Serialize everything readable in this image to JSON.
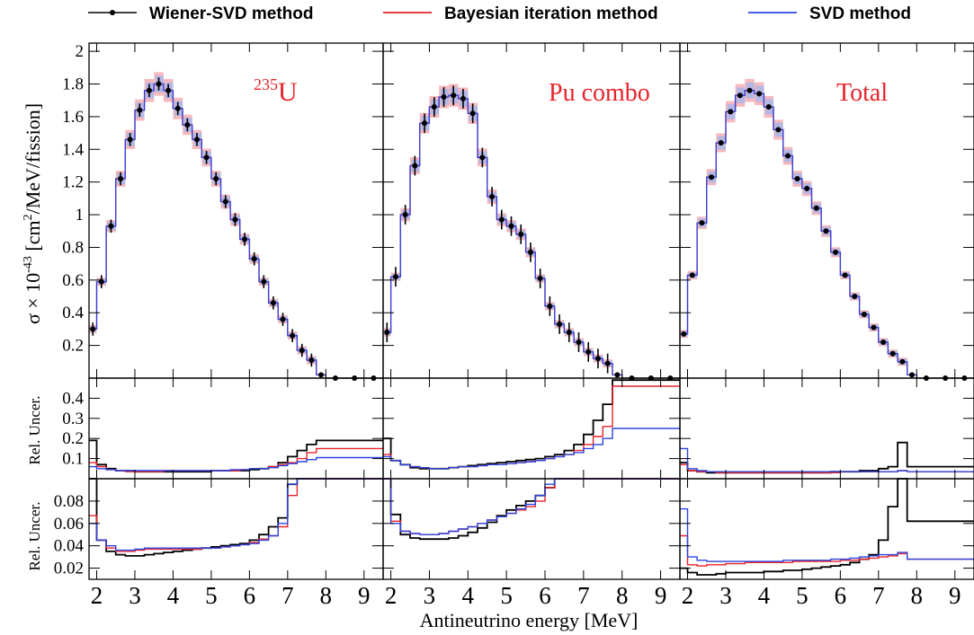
{
  "legend": {
    "wiener": {
      "label": "Wiener-SVD method",
      "color": "#000000"
    },
    "bayes": {
      "label": "Bayesian iteration method",
      "color": "#e8232a"
    },
    "svd": {
      "label": "SVD method",
      "color": "#2b45e0"
    }
  },
  "xlabel": "Antineutrino energy [MeV]",
  "ylabel_top": "σ × 10",
  "ylabel_top_exp": "-43",
  "ylabel_top_unit": " [cm",
  "ylabel_top_unit_exp": "2",
  "ylabel_top_unit_rest": "/MeV/fission]",
  "ylabel_mid": "Rel. Uncer.",
  "ylabel_bot": "Rel. Uncer.",
  "panels": [
    {
      "label_sup": "235",
      "label": "U"
    },
    {
      "label": "Pu combo"
    },
    {
      "label": "Total"
    }
  ],
  "colors": {
    "wiener": "#000000",
    "bayes": "#e8232a",
    "svd": "#2b45e0",
    "band_red": "#f4a8ac",
    "band_blue": "#a9b6ec",
    "label": "#e8232a"
  },
  "chart_data": {
    "type": "line",
    "x_edges": [
      1.8,
      2.0,
      2.25,
      2.5,
      2.75,
      3.0,
      3.25,
      3.5,
      3.75,
      4.0,
      4.25,
      4.5,
      4.75,
      5.0,
      5.25,
      5.5,
      5.75,
      6.0,
      6.25,
      6.5,
      6.75,
      7.0,
      7.25,
      7.5,
      7.75,
      8.0,
      8.5,
      9.0,
      9.5
    ],
    "xlim": [
      1.8,
      9.5
    ],
    "xticks": [
      "2",
      "3",
      "4",
      "5",
      "6",
      "7",
      "8",
      "9"
    ],
    "top": {
      "ylim": [
        0,
        2.05
      ],
      "yticks": [
        "0.2",
        "0.4",
        "0.6",
        "0.8",
        "1",
        "1.2",
        "1.4",
        "1.6",
        "1.8",
        "2"
      ],
      "series": [
        {
          "values": [
            0.3,
            0.59,
            0.93,
            1.22,
            1.46,
            1.64,
            1.76,
            1.8,
            1.76,
            1.65,
            1.55,
            1.46,
            1.35,
            1.22,
            1.08,
            0.97,
            0.85,
            0.73,
            0.59,
            0.46,
            0.36,
            0.26,
            0.17,
            0.11,
            0.02,
            0.0,
            0.0,
            0.0
          ]
        },
        {
          "values": [
            0.28,
            0.62,
            1.0,
            1.3,
            1.56,
            1.66,
            1.72,
            1.73,
            1.71,
            1.62,
            1.35,
            1.11,
            0.97,
            0.93,
            0.88,
            0.77,
            0.61,
            0.44,
            0.33,
            0.28,
            0.22,
            0.16,
            0.12,
            0.09,
            0.02,
            0.0,
            0.0,
            0.0
          ]
        },
        {
          "values": [
            0.27,
            0.63,
            0.95,
            1.23,
            1.44,
            1.63,
            1.73,
            1.76,
            1.74,
            1.66,
            1.52,
            1.36,
            1.22,
            1.16,
            1.04,
            0.9,
            0.77,
            0.63,
            0.5,
            0.39,
            0.31,
            0.22,
            0.15,
            0.1,
            0.02,
            0.0,
            0.0,
            0.0
          ]
        }
      ]
    },
    "mid": {
      "ylim": [
        0,
        0.5
      ],
      "yticks": [
        "0.1",
        "0.2",
        "0.3",
        "0.4"
      ],
      "series": [
        [
          {
            "name": "Wiener-SVD method",
            "values": [
              0.19,
              0.07,
              0.05,
              0.04,
              0.04,
              0.035,
              0.035,
              0.035,
              0.035,
              0.035,
              0.035,
              0.035,
              0.035,
              0.04,
              0.04,
              0.04,
              0.04,
              0.045,
              0.05,
              0.06,
              0.08,
              0.11,
              0.14,
              0.17,
              0.19,
              0.19,
              0.19,
              0.19
            ]
          },
          {
            "name": "Bayesian iteration method",
            "values": [
              0.08,
              0.06,
              0.045,
              0.04,
              0.035,
              0.035,
              0.035,
              0.035,
              0.04,
              0.04,
              0.04,
              0.04,
              0.04,
              0.04,
              0.04,
              0.04,
              0.045,
              0.05,
              0.05,
              0.06,
              0.07,
              0.08,
              0.1,
              0.13,
              0.15,
              0.15,
              0.15,
              0.15
            ]
          },
          {
            "name": "SVD method",
            "values": [
              0.06,
              0.05,
              0.045,
              0.04,
              0.04,
              0.04,
              0.04,
              0.04,
              0.04,
              0.04,
              0.04,
              0.04,
              0.04,
              0.04,
              0.04,
              0.045,
              0.045,
              0.05,
              0.05,
              0.055,
              0.065,
              0.075,
              0.085,
              0.095,
              0.105,
              0.105,
              0.105,
              0.105
            ]
          }
        ],
        [
          {
            "name": "Wiener-SVD method",
            "values": [
              0.2,
              0.09,
              0.07,
              0.055,
              0.05,
              0.05,
              0.05,
              0.055,
              0.06,
              0.065,
              0.07,
              0.075,
              0.08,
              0.085,
              0.09,
              0.095,
              0.1,
              0.11,
              0.12,
              0.14,
              0.17,
              0.22,
              0.29,
              0.37,
              0.49,
              0.49,
              0.49,
              0.49
            ]
          },
          {
            "name": "Bayesian iteration method",
            "values": [
              0.12,
              0.09,
              0.07,
              0.06,
              0.055,
              0.05,
              0.05,
              0.055,
              0.06,
              0.06,
              0.065,
              0.07,
              0.07,
              0.075,
              0.08,
              0.085,
              0.09,
              0.1,
              0.11,
              0.12,
              0.14,
              0.17,
              0.21,
              0.26,
              0.46,
              0.46,
              0.46,
              0.46
            ]
          },
          {
            "name": "SVD method",
            "values": [
              0.11,
              0.09,
              0.07,
              0.06,
              0.055,
              0.05,
              0.05,
              0.055,
              0.06,
              0.06,
              0.065,
              0.07,
              0.07,
              0.075,
              0.08,
              0.085,
              0.09,
              0.1,
              0.11,
              0.12,
              0.13,
              0.15,
              0.17,
              0.2,
              0.25,
              0.25,
              0.25,
              0.25
            ]
          }
        ],
        [
          {
            "name": "Wiener-SVD method",
            "values": [
              0.08,
              0.04,
              0.035,
              0.03,
              0.03,
              0.03,
              0.03,
              0.03,
              0.03,
              0.03,
              0.03,
              0.03,
              0.03,
              0.03,
              0.03,
              0.03,
              0.035,
              0.035,
              0.035,
              0.04,
              0.04,
              0.05,
              0.06,
              0.18,
              0.06,
              0.06,
              0.06,
              0.06
            ]
          },
          {
            "name": "Bayesian iteration method",
            "values": [
              0.07,
              0.04,
              0.035,
              0.035,
              0.03,
              0.03,
              0.03,
              0.03,
              0.03,
              0.03,
              0.03,
              0.03,
              0.03,
              0.03,
              0.03,
              0.03,
              0.03,
              0.035,
              0.035,
              0.035,
              0.035,
              0.035,
              0.035,
              0.04,
              0.035,
              0.035,
              0.035,
              0.035
            ]
          },
          {
            "name": "SVD method",
            "values": [
              0.15,
              0.05,
              0.04,
              0.035,
              0.035,
              0.035,
              0.035,
              0.035,
              0.035,
              0.035,
              0.035,
              0.035,
              0.035,
              0.035,
              0.035,
              0.035,
              0.035,
              0.035,
              0.035,
              0.035,
              0.035,
              0.035,
              0.035,
              0.04,
              0.035,
              0.035,
              0.035,
              0.035
            ]
          }
        ]
      ]
    },
    "bot": {
      "ylim": [
        0.01,
        0.1
      ],
      "yticks": [
        "0.02",
        "0.04",
        "0.06",
        "0.08"
      ],
      "series": [
        [
          {
            "name": "Wiener-SVD method",
            "values": [
              0.1,
              0.045,
              0.035,
              0.032,
              0.031,
              0.031,
              0.032,
              0.033,
              0.034,
              0.035,
              0.036,
              0.037,
              0.038,
              0.039,
              0.04,
              0.041,
              0.042,
              0.045,
              0.05,
              0.057,
              0.065,
              0.095,
              0.1,
              0.1,
              0.1,
              0.1,
              0.1,
              0.1
            ]
          },
          {
            "name": "Bayesian iteration method",
            "values": [
              0.067,
              0.045,
              0.038,
              0.035,
              0.035,
              0.036,
              0.037,
              0.037,
              0.037,
              0.037,
              0.037,
              0.037,
              0.038,
              0.038,
              0.039,
              0.04,
              0.041,
              0.043,
              0.046,
              0.049,
              0.057,
              0.085,
              0.1,
              0.1,
              0.1,
              0.1,
              0.1,
              0.1
            ]
          },
          {
            "name": "SVD method",
            "values": [
              0.06,
              0.045,
              0.04,
              0.036,
              0.036,
              0.037,
              0.038,
              0.038,
              0.038,
              0.038,
              0.038,
              0.038,
              0.038,
              0.038,
              0.039,
              0.04,
              0.041,
              0.042,
              0.045,
              0.049,
              0.06,
              0.095,
              0.1,
              0.1,
              0.1,
              0.1,
              0.1,
              0.1
            ]
          }
        ],
        [
          {
            "name": "Wiener-SVD method",
            "values": [
              0.1,
              0.068,
              0.05,
              0.047,
              0.046,
              0.046,
              0.046,
              0.047,
              0.049,
              0.052,
              0.056,
              0.061,
              0.067,
              0.072,
              0.076,
              0.08,
              0.085,
              0.092,
              0.1,
              0.1,
              0.1,
              0.1,
              0.1,
              0.1,
              0.1,
              0.1,
              0.1,
              0.1
            ]
          },
          {
            "name": "Bayesian iteration method",
            "values": [
              0.1,
              0.062,
              0.053,
              0.051,
              0.05,
              0.05,
              0.051,
              0.053,
              0.055,
              0.057,
              0.06,
              0.063,
              0.066,
              0.069,
              0.072,
              0.075,
              0.08,
              0.092,
              0.1,
              0.1,
              0.1,
              0.1,
              0.1,
              0.1,
              0.1,
              0.1,
              0.1,
              0.1
            ]
          },
          {
            "name": "SVD method",
            "values": [
              0.1,
              0.06,
              0.053,
              0.051,
              0.05,
              0.05,
              0.051,
              0.053,
              0.055,
              0.057,
              0.06,
              0.063,
              0.066,
              0.069,
              0.073,
              0.077,
              0.085,
              0.095,
              0.1,
              0.1,
              0.1,
              0.1,
              0.1,
              0.1,
              0.1,
              0.1,
              0.1,
              0.1
            ]
          }
        ],
        [
          {
            "name": "Wiener-SVD method",
            "values": [
              0.02,
              0.016,
              0.014,
              0.014,
              0.015,
              0.016,
              0.016,
              0.016,
              0.016,
              0.017,
              0.017,
              0.018,
              0.018,
              0.019,
              0.02,
              0.021,
              0.022,
              0.023,
              0.025,
              0.028,
              0.032,
              0.045,
              0.075,
              0.1,
              0.062,
              0.062,
              0.062,
              0.062
            ]
          },
          {
            "name": "Bayesian iteration method",
            "values": [
              0.049,
              0.023,
              0.022,
              0.023,
              0.023,
              0.024,
              0.024,
              0.025,
              0.025,
              0.025,
              0.025,
              0.025,
              0.026,
              0.026,
              0.026,
              0.026,
              0.026,
              0.027,
              0.027,
              0.028,
              0.029,
              0.03,
              0.031,
              0.033,
              0.028,
              0.028,
              0.028,
              0.028
            ]
          },
          {
            "name": "SVD method",
            "values": [
              0.073,
              0.03,
              0.027,
              0.026,
              0.026,
              0.026,
              0.026,
              0.026,
              0.026,
              0.026,
              0.026,
              0.027,
              0.027,
              0.027,
              0.027,
              0.027,
              0.028,
              0.028,
              0.029,
              0.03,
              0.031,
              0.032,
              0.032,
              0.034,
              0.028,
              0.028,
              0.028,
              0.028
            ]
          }
        ]
      ]
    }
  }
}
